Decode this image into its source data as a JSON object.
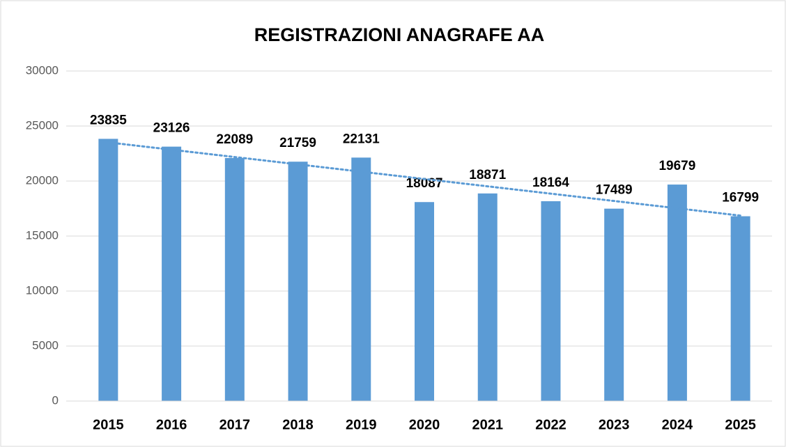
{
  "chart_data": {
    "type": "bar",
    "title": "REGISTRAZIONI ANAGRAFE AA",
    "categories": [
      "2015",
      "2016",
      "2017",
      "2018",
      "2019",
      "2020",
      "2021",
      "2022",
      "2023",
      "2024",
      "2025"
    ],
    "values": [
      23835,
      23126,
      22089,
      21759,
      22131,
      18087,
      18871,
      18164,
      17489,
      19679,
      16799
    ],
    "color": "#5b9bd5",
    "ylim": [
      0,
      30000
    ],
    "yticks": [
      0,
      5000,
      10000,
      15000,
      20000,
      25000,
      30000
    ],
    "grid": true,
    "trendline": true
  }
}
